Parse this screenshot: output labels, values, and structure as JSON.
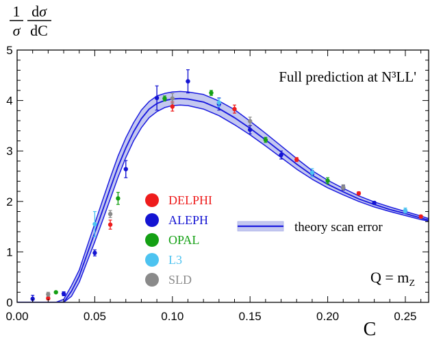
{
  "chart_data": {
    "type": "scatter",
    "title": "Full prediction at N³LL'",
    "xlabel": "C",
    "ylabel": "1/σ dσ/dC",
    "xlim": [
      0,
      0.265
    ],
    "ylim": [
      0,
      5
    ],
    "x_ticks": [
      0.0,
      0.05,
      0.1,
      0.15,
      0.2,
      0.25
    ],
    "x_tick_labels": [
      "0.00",
      "0.05",
      "0.10",
      "0.15",
      "0.20",
      "0.25"
    ],
    "y_ticks": [
      0,
      1,
      2,
      3,
      4,
      5
    ],
    "y_tick_labels": [
      "0",
      "1",
      "2",
      "3",
      "4",
      "5"
    ],
    "grid": false,
    "legend_position": "center-left",
    "annotation": "Q = m",
    "annotation_sub": "Z",
    "theory_band": {
      "name": "theory scan error",
      "color": "#1a1adf",
      "fill": "#c4c8f0",
      "x": [
        0.0,
        0.025,
        0.03,
        0.035,
        0.04,
        0.045,
        0.05,
        0.055,
        0.06,
        0.065,
        0.07,
        0.075,
        0.08,
        0.085,
        0.09,
        0.095,
        0.1,
        0.105,
        0.11,
        0.12,
        0.13,
        0.14,
        0.15,
        0.16,
        0.17,
        0.18,
        0.19,
        0.2,
        0.21,
        0.22,
        0.23,
        0.24,
        0.25,
        0.26,
        0.265
      ],
      "lower": [
        0.0,
        0.0,
        0.0,
        0.12,
        0.4,
        0.8,
        1.2,
        1.62,
        2.05,
        2.48,
        2.87,
        3.2,
        3.46,
        3.66,
        3.78,
        3.86,
        3.9,
        3.91,
        3.9,
        3.83,
        3.7,
        3.52,
        3.32,
        3.1,
        2.87,
        2.64,
        2.44,
        2.27,
        2.13,
        2.0,
        1.89,
        1.8,
        1.72,
        1.64,
        1.61
      ],
      "central": [
        0.0,
        0.0,
        0.0,
        0.22,
        0.52,
        0.95,
        1.38,
        1.82,
        2.26,
        2.69,
        3.06,
        3.38,
        3.64,
        3.83,
        3.94,
        4.0,
        4.03,
        4.04,
        4.03,
        3.97,
        3.84,
        3.66,
        3.45,
        3.22,
        2.98,
        2.74,
        2.52,
        2.34,
        2.19,
        2.05,
        1.94,
        1.84,
        1.76,
        1.67,
        1.63
      ],
      "upper": [
        0.0,
        0.0,
        0.06,
        0.33,
        0.64,
        1.1,
        1.56,
        2.02,
        2.47,
        2.9,
        3.26,
        3.56,
        3.81,
        3.98,
        4.09,
        4.14,
        4.17,
        4.18,
        4.17,
        4.12,
        3.99,
        3.82,
        3.59,
        3.35,
        3.1,
        2.85,
        2.61,
        2.42,
        2.26,
        2.11,
        1.99,
        1.89,
        1.8,
        1.71,
        1.66
      ]
    },
    "series": [
      {
        "name": "DELPHI",
        "color": "#ee1c1c",
        "points": [
          {
            "x": 0.02,
            "y": 0.08,
            "err": 0.03
          },
          {
            "x": 0.06,
            "y": 1.54,
            "err": 0.09
          },
          {
            "x": 0.1,
            "y": 3.88,
            "err": 0.09
          },
          {
            "x": 0.14,
            "y": 3.83,
            "err": 0.08
          },
          {
            "x": 0.18,
            "y": 2.83,
            "err": 0.04
          },
          {
            "x": 0.22,
            "y": 2.16,
            "err": 0.03
          },
          {
            "x": 0.26,
            "y": 1.7,
            "err": 0.03
          }
        ]
      },
      {
        "name": "ALEPH",
        "color": "#1414d2",
        "points": [
          {
            "x": 0.01,
            "y": 0.07,
            "err": 0.07
          },
          {
            "x": 0.03,
            "y": 0.17,
            "err": 0.04
          },
          {
            "x": 0.05,
            "y": 0.98,
            "err": 0.06
          },
          {
            "x": 0.07,
            "y": 2.64,
            "err": 0.17
          },
          {
            "x": 0.09,
            "y": 4.05,
            "err": 0.24
          },
          {
            "x": 0.11,
            "y": 4.38,
            "err": 0.23
          },
          {
            "x": 0.13,
            "y": 3.93,
            "err": 0.12
          },
          {
            "x": 0.15,
            "y": 3.42,
            "err": 0.08
          },
          {
            "x": 0.17,
            "y": 2.92,
            "err": 0.08
          },
          {
            "x": 0.19,
            "y": 2.55,
            "err": 0.06
          },
          {
            "x": 0.21,
            "y": 2.27,
            "err": 0.05
          },
          {
            "x": 0.23,
            "y": 1.97,
            "err": 0.03
          }
        ]
      },
      {
        "name": "OPAL",
        "color": "#14a014",
        "points": [
          {
            "x": 0.025,
            "y": 0.2,
            "err": 0.02
          },
          {
            "x": 0.065,
            "y": 2.06,
            "err": 0.12
          },
          {
            "x": 0.095,
            "y": 4.04,
            "err": 0.05
          },
          {
            "x": 0.125,
            "y": 4.15,
            "err": 0.05
          },
          {
            "x": 0.16,
            "y": 3.22,
            "err": 0.05
          },
          {
            "x": 0.2,
            "y": 2.41,
            "err": 0.06
          }
        ]
      },
      {
        "name": "L3",
        "color": "#4dc3f0",
        "points": [
          {
            "x": 0.05,
            "y": 1.55,
            "err": 0.25
          },
          {
            "x": 0.13,
            "y": 3.96,
            "err": 0.08
          },
          {
            "x": 0.19,
            "y": 2.57,
            "err": 0.08
          },
          {
            "x": 0.25,
            "y": 1.82,
            "err": 0.05
          }
        ]
      },
      {
        "name": "SLD",
        "color": "#8a8a8a",
        "points": [
          {
            "x": 0.02,
            "y": 0.16,
            "err": 0.04
          },
          {
            "x": 0.06,
            "y": 1.75,
            "err": 0.07
          },
          {
            "x": 0.1,
            "y": 4.04,
            "err": 0.1
          },
          {
            "x": 0.15,
            "y": 3.59,
            "err": 0.08
          },
          {
            "x": 0.21,
            "y": 2.28,
            "err": 0.05
          }
        ]
      }
    ]
  }
}
